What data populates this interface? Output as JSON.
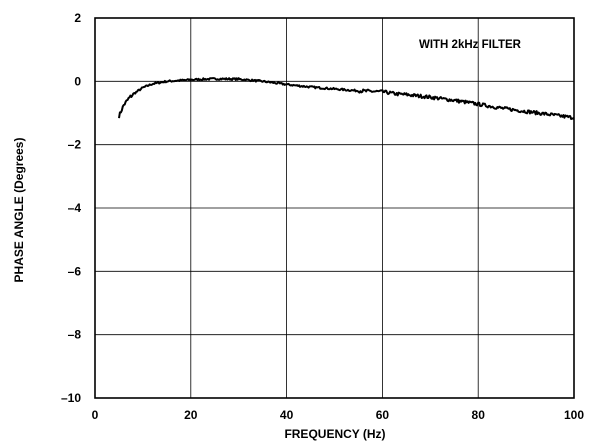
{
  "chart_data": {
    "type": "line",
    "xlabel": "FREQUENCY (Hz)",
    "ylabel": "PHASE ANGLE (Degrees)",
    "xlim": [
      0,
      100
    ],
    "ylim": [
      -10,
      2
    ],
    "x_ticks": [
      0,
      20,
      40,
      60,
      80,
      100
    ],
    "y_ticks": [
      2,
      0,
      -2,
      -4,
      -6,
      -8,
      -10
    ],
    "x_tick_labels": [
      "0",
      "20",
      "40",
      "60",
      "80",
      "100"
    ],
    "y_tick_labels": [
      "2",
      "0",
      "–2",
      "–4",
      "–6",
      "–8",
      "–10"
    ],
    "grid": true,
    "annotation": "WITH 2kHz FILTER",
    "series": [
      {
        "x": [
          5,
          6,
          7,
          8,
          10,
          12,
          15,
          18,
          20,
          25,
          30,
          35,
          40,
          45,
          50,
          55,
          60,
          63,
          65,
          70,
          75,
          80,
          85,
          90,
          95,
          100
        ],
        "y": [
          -1.1,
          -0.75,
          -0.55,
          -0.4,
          -0.2,
          -0.08,
          0.0,
          0.03,
          0.05,
          0.08,
          0.07,
          0.0,
          -0.1,
          -0.18,
          -0.24,
          -0.3,
          -0.33,
          -0.4,
          -0.42,
          -0.5,
          -0.6,
          -0.72,
          -0.85,
          -0.95,
          -1.05,
          -1.15
        ],
        "color": "#000000"
      }
    ]
  }
}
